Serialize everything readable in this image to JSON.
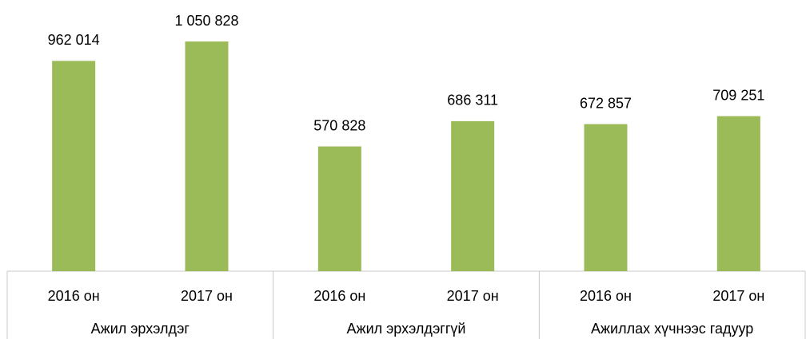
{
  "chart_data": {
    "type": "bar",
    "color": "#9bbb59",
    "groups": [
      {
        "name": "Ажил эрхэлдэг",
        "categories": [
          "2016 он",
          "2017 он"
        ],
        "values": [
          962014,
          1050828
        ],
        "value_labels": [
          "962 014",
          "1 050 828"
        ]
      },
      {
        "name": "Ажил эрхэлдэггүй",
        "categories": [
          "2016 он",
          "2017 он"
        ],
        "values": [
          570828,
          686311
        ],
        "value_labels": [
          "570 828",
          "686 311"
        ]
      },
      {
        "name": "Ажиллах хүчнээс гадуур",
        "categories": [
          "2016 он",
          "2017 он"
        ],
        "values": [
          672857,
          709251
        ],
        "value_labels": [
          "672 857",
          "709 251"
        ]
      }
    ]
  }
}
